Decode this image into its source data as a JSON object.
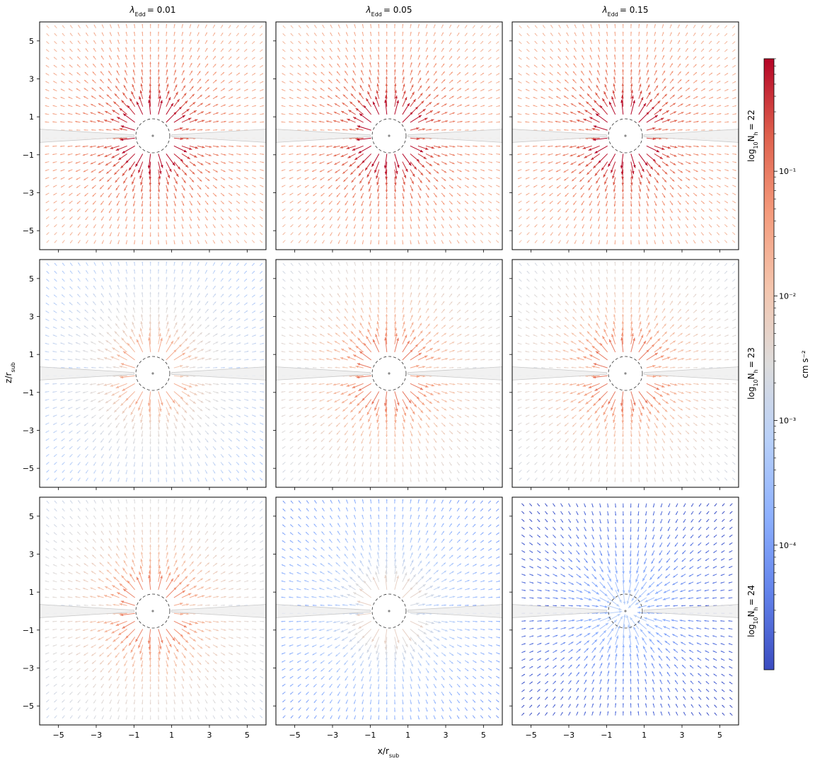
{
  "colors": {
    "disk_fill": "#efefef",
    "disk_edge": "#c8c8c8",
    "sphere_edge": "#333333",
    "center_dot": "#8a8a8a",
    "colormap": [
      "#3b4cc0",
      "#6282ea",
      "#8db0fe",
      "#b8d0f9",
      "#dddcdc",
      "#f4c5ad",
      "#f49a7b",
      "#de604d",
      "#b40426"
    ]
  },
  "chart_data": {
    "type": "quiver-grid",
    "xlabel": "x/r_sub",
    "ylabel": "z/r_sub",
    "xlim": [
      -6,
      6
    ],
    "ylim": [
      -6,
      6
    ],
    "xticks": [
      -5,
      -3,
      -1,
      1,
      3,
      5
    ],
    "yticks": [
      -5,
      -3,
      -1,
      1,
      3,
      5
    ],
    "column_titles": [
      "λEdd = 0.01",
      "λEdd = 0.05",
      "λEdd = 0.15"
    ],
    "row_labels": [
      "log10Nh = 22",
      "log10Nh = 23",
      "log10Nh = 24"
    ],
    "colorbar": {
      "label": "cm s⁻²",
      "scale": "log",
      "range": [
        1e-05,
        0.8
      ],
      "ticks": [
        "10⁻⁴",
        "10⁻³",
        "10⁻²",
        "10⁻¹"
      ],
      "tick_values": [
        0.0001,
        0.001,
        0.01,
        0.1
      ]
    },
    "panels": [
      {
        "row": 0,
        "col": 0,
        "lambda_edd": 0.01,
        "log_nh": 22,
        "typical_magnitude": 0.6,
        "flow": "outward"
      },
      {
        "row": 0,
        "col": 1,
        "lambda_edd": 0.05,
        "log_nh": 22,
        "typical_magnitude": 0.6,
        "flow": "outward"
      },
      {
        "row": 0,
        "col": 2,
        "lambda_edd": 0.15,
        "log_nh": 22,
        "typical_magnitude": 0.6,
        "flow": "outward"
      },
      {
        "row": 1,
        "col": 0,
        "lambda_edd": 0.01,
        "log_nh": 23,
        "typical_magnitude": 0.02,
        "flow": "outward"
      },
      {
        "row": 1,
        "col": 1,
        "lambda_edd": 0.05,
        "log_nh": 23,
        "typical_magnitude": 0.08,
        "flow": "outward"
      },
      {
        "row": 1,
        "col": 2,
        "lambda_edd": 0.15,
        "log_nh": 23,
        "typical_magnitude": 0.08,
        "flow": "outward"
      },
      {
        "row": 2,
        "col": 0,
        "lambda_edd": 0.01,
        "log_nh": 24,
        "typical_magnitude": 0.06,
        "flow": "outward"
      },
      {
        "row": 2,
        "col": 1,
        "lambda_edd": 0.05,
        "log_nh": 24,
        "typical_magnitude": 0.004,
        "flow": "outward"
      },
      {
        "row": 2,
        "col": 2,
        "lambda_edd": 0.15,
        "log_nh": 24,
        "typical_magnitude": 0.0005,
        "flow": "inward"
      }
    ]
  }
}
